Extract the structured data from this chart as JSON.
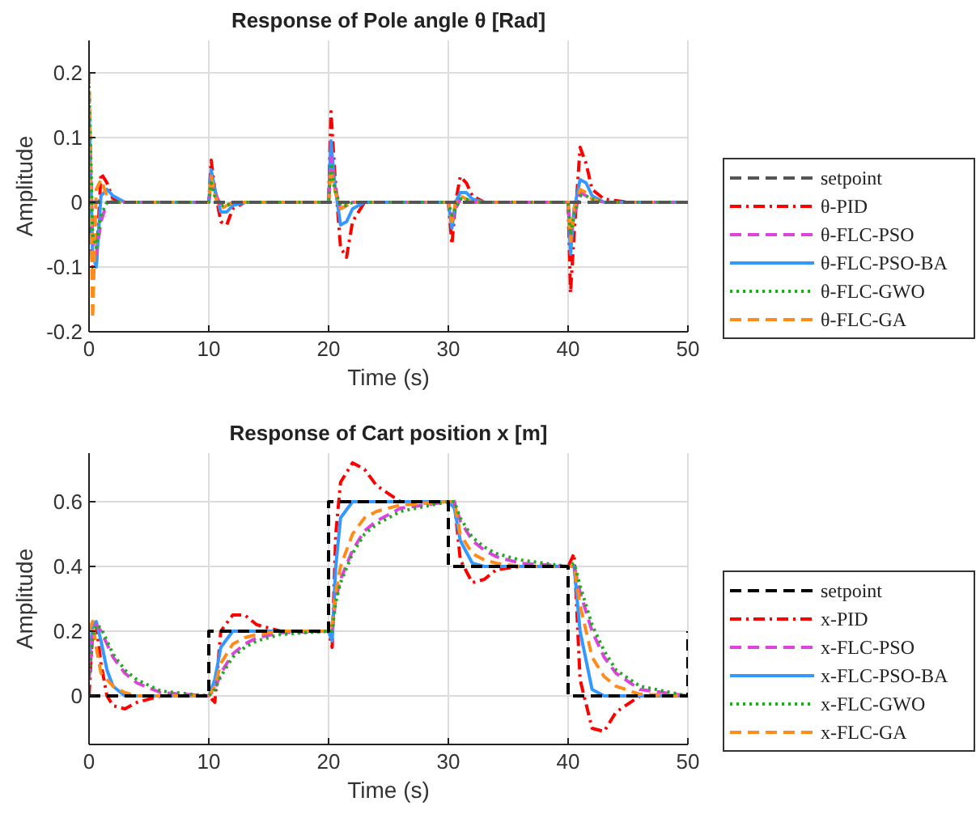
{
  "chart_data": [
    {
      "type": "line",
      "title": "Response of Pole angle θ [Rad]",
      "xlabel": "Time (s)",
      "ylabel": "Amplitude",
      "xlim": [
        0,
        50
      ],
      "ylim": [
        -0.2,
        0.25
      ],
      "xticks": [
        0,
        10,
        20,
        30,
        40,
        50
      ],
      "yticks": [
        -0.2,
        -0.1,
        0,
        0.1,
        0.2
      ],
      "grid": true,
      "legend": "right",
      "x": [
        0,
        0.3,
        0.6,
        1,
        1.5,
        2,
        3,
        5,
        10,
        10.2,
        10.5,
        11,
        11.5,
        12,
        13,
        15,
        20,
        20.2,
        20.5,
        21,
        21.5,
        22,
        23,
        25,
        30,
        30.3,
        30.6,
        31,
        31.5,
        32,
        33,
        35,
        40,
        40.2,
        40.5,
        41,
        41.5,
        42,
        43,
        45,
        50
      ],
      "series": [
        {
          "name": "setpoint",
          "color": "#555555",
          "line_style": "dashed",
          "x": [
            0,
            50
          ],
          "values": [
            0,
            0
          ]
        },
        {
          "name": "θ-PID",
          "color": "#ff0000",
          "line_style": "dashdot",
          "values": [
            0,
            -0.1,
            -0.1,
            0.045,
            0.03,
            0.005,
            0,
            0,
            0,
            0.065,
            0.02,
            -0.03,
            -0.035,
            -0.01,
            0,
            0,
            0,
            0.14,
            0.05,
            -0.07,
            -0.085,
            -0.03,
            0,
            0,
            0,
            -0.065,
            0,
            0.04,
            0.03,
            0.01,
            0,
            0,
            0,
            -0.14,
            -0.05,
            0.085,
            0.06,
            0.02,
            0.005,
            0,
            0
          ]
        },
        {
          "name": "θ-FLC-PSO",
          "color": "#dd44dd",
          "line_style": "dashed",
          "values": [
            0.17,
            -0.06,
            -0.08,
            -0.03,
            0,
            0,
            0,
            0,
            0,
            0.035,
            0.015,
            -0.005,
            -0.005,
            0,
            0,
            0,
            0,
            0.07,
            0.025,
            -0.01,
            -0.005,
            0,
            0,
            0,
            0,
            -0.025,
            -0.01,
            0.005,
            0.005,
            0,
            0,
            0,
            0,
            -0.055,
            -0.02,
            0.015,
            0.01,
            0.005,
            0,
            0,
            0
          ]
        },
        {
          "name": "θ-FLC-PSO-BA",
          "color": "#3399ff",
          "line_style": "solid",
          "values": [
            0.15,
            -0.08,
            -0.1,
            0.01,
            0.02,
            0.01,
            0,
            0,
            0,
            0.05,
            0.02,
            -0.015,
            -0.015,
            -0.005,
            0,
            0,
            0,
            0.095,
            0.03,
            -0.035,
            -0.03,
            -0.01,
            0,
            0,
            0,
            -0.04,
            0,
            0.015,
            0.015,
            0.005,
            0,
            0,
            0,
            -0.08,
            -0.01,
            0.035,
            0.03,
            0.01,
            0,
            0,
            0
          ]
        },
        {
          "name": "θ-FLC-GWO",
          "color": "#22aa22",
          "line_style": "dotted",
          "values": [
            0.18,
            -0.05,
            -0.07,
            -0.02,
            0,
            0,
            0,
            0,
            0,
            0.03,
            0.01,
            -0.005,
            -0.005,
            0,
            0,
            0,
            0,
            0.06,
            0.02,
            -0.005,
            -0.005,
            0,
            0,
            0,
            0,
            -0.02,
            -0.01,
            0.005,
            0.005,
            0,
            0,
            0,
            0,
            -0.05,
            -0.02,
            0.01,
            0.01,
            0.005,
            0,
            0,
            0
          ]
        },
        {
          "name": "θ-FLC-GA",
          "color": "#ff8c1a",
          "line_style": "dashed",
          "values": [
            0.2,
            -0.18,
            0.02,
            0.035,
            0.01,
            0,
            0,
            0,
            0,
            0.04,
            0.01,
            -0.01,
            -0.005,
            0,
            0,
            0,
            0,
            0.05,
            0.02,
            -0.01,
            -0.005,
            0,
            0,
            0,
            0,
            -0.03,
            0,
            0.01,
            0.005,
            0,
            0,
            0,
            0,
            -0.06,
            -0.01,
            0.02,
            0.015,
            0.005,
            0,
            0,
            0
          ]
        }
      ]
    },
    {
      "type": "line",
      "title": "Response of Cart position x [m]",
      "xlabel": "Time (s)",
      "ylabel": "Amplitude",
      "xlim": [
        0,
        50
      ],
      "ylim": [
        -0.15,
        0.75
      ],
      "xticks": [
        0,
        10,
        20,
        30,
        40,
        50
      ],
      "yticks": [
        0,
        0.2,
        0.4,
        0.6
      ],
      "grid": true,
      "legend": "right",
      "x": [
        0,
        0.3,
        0.6,
        1,
        1.5,
        2,
        3,
        4,
        6,
        10,
        10.5,
        11,
        12,
        13,
        14,
        16,
        20,
        20.3,
        20.6,
        21,
        22,
        23,
        24,
        26,
        30,
        30.5,
        31,
        32,
        33,
        34,
        36,
        40,
        40.5,
        41,
        42,
        43,
        44,
        46,
        50
      ],
      "series": [
        {
          "name": "setpoint",
          "color": "#000000",
          "line_style": "dashed",
          "x": [
            0,
            10,
            10,
            20,
            20,
            30,
            30,
            40,
            40,
            50,
            50
          ],
          "values": [
            0,
            0,
            0.2,
            0.2,
            0.6,
            0.6,
            0.4,
            0.4,
            0,
            0,
            0.2
          ]
        },
        {
          "name": "x-PID",
          "color": "#ff0000",
          "line_style": "dashdot",
          "values": [
            0,
            0.2,
            0.22,
            0.1,
            0,
            -0.03,
            -0.04,
            -0.02,
            0,
            0,
            -0.02,
            0.2,
            0.25,
            0.25,
            0.22,
            0.2,
            0.2,
            0.15,
            0.5,
            0.66,
            0.72,
            0.7,
            0.65,
            0.6,
            0.6,
            0.6,
            0.42,
            0.35,
            0.36,
            0.39,
            0.4,
            0.4,
            0.44,
            0.05,
            -0.1,
            -0.11,
            -0.05,
            0,
            0
          ]
        },
        {
          "name": "x-FLC-PSO",
          "color": "#dd44dd",
          "line_style": "dashed",
          "values": [
            0.05,
            0.18,
            0.22,
            0.2,
            0.16,
            0.12,
            0.07,
            0.04,
            0.01,
            0,
            0.02,
            0.07,
            0.13,
            0.16,
            0.18,
            0.195,
            0.2,
            0.2,
            0.3,
            0.36,
            0.45,
            0.51,
            0.54,
            0.58,
            0.6,
            0.6,
            0.54,
            0.48,
            0.45,
            0.43,
            0.41,
            0.4,
            0.4,
            0.32,
            0.2,
            0.12,
            0.07,
            0.02,
            0
          ]
        },
        {
          "name": "x-FLC-PSO-BA",
          "color": "#3399ff",
          "line_style": "solid",
          "values": [
            0.1,
            0.22,
            0.23,
            0.17,
            0.08,
            0.03,
            0,
            0,
            0,
            0,
            0.05,
            0.15,
            0.2,
            0.2,
            0.2,
            0.2,
            0.2,
            0.17,
            0.4,
            0.55,
            0.6,
            0.6,
            0.6,
            0.6,
            0.6,
            0.58,
            0.48,
            0.41,
            0.4,
            0.4,
            0.4,
            0.4,
            0.4,
            0.2,
            0.02,
            0,
            0,
            0,
            0
          ]
        },
        {
          "name": "x-FLC-GWO",
          "color": "#22aa22",
          "line_style": "dotted",
          "values": [
            0.05,
            0.18,
            0.22,
            0.21,
            0.17,
            0.13,
            0.08,
            0.05,
            0.015,
            0,
            0.02,
            0.06,
            0.12,
            0.15,
            0.17,
            0.19,
            0.2,
            0.2,
            0.29,
            0.35,
            0.44,
            0.5,
            0.53,
            0.57,
            0.6,
            0.6,
            0.55,
            0.49,
            0.46,
            0.44,
            0.42,
            0.4,
            0.41,
            0.34,
            0.22,
            0.14,
            0.08,
            0.03,
            0
          ]
        },
        {
          "name": "x-FLC-GA",
          "color": "#ff8c1a",
          "line_style": "dashed",
          "values": [
            0.2,
            0.23,
            0.15,
            0.07,
            0.05,
            0.03,
            0.01,
            0,
            0,
            0,
            0.03,
            0.1,
            0.16,
            0.18,
            0.19,
            0.2,
            0.2,
            0.22,
            0.32,
            0.4,
            0.5,
            0.55,
            0.57,
            0.59,
            0.6,
            0.6,
            0.5,
            0.44,
            0.42,
            0.41,
            0.4,
            0.4,
            0.4,
            0.28,
            0.12,
            0.06,
            0.03,
            0.005,
            0
          ]
        }
      ]
    }
  ]
}
